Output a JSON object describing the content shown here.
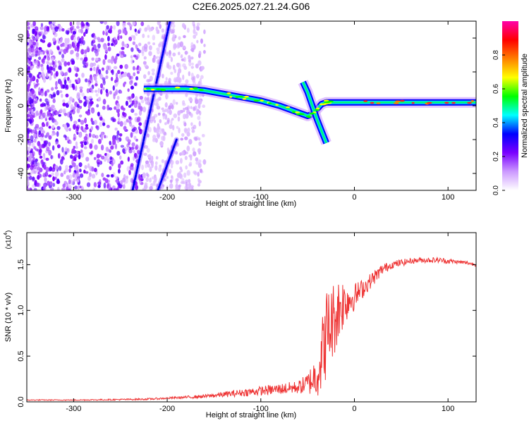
{
  "title": "C2E6.2025.027.21.24.G06",
  "chart_data": [
    {
      "type": "heatmap",
      "xlabel": "Height of straight line (km)",
      "ylabel": "Frequency (Hz)",
      "xlim": [
        -350,
        130
      ],
      "ylim": [
        -50,
        50
      ],
      "x_ticks": [
        -300,
        -200,
        -100,
        0,
        100
      ],
      "y_ticks": [
        -40,
        -20,
        0,
        20,
        40
      ],
      "colorbar": {
        "label": "Normalized spectral amplitude",
        "range": [
          0,
          1
        ],
        "ticks": [
          "0.0",
          "0.2",
          "0.4",
          "0.6",
          "0.8"
        ],
        "tick_values": [
          0,
          0.2,
          0.4,
          0.6,
          0.8
        ],
        "colors": [
          "#ffffff",
          "#cc99ff",
          "#7a00ff",
          "#0000ff",
          "#00ffff",
          "#00ff00",
          "#ffff00",
          "#ff8000",
          "#ff0000",
          "#ff00aa"
        ]
      },
      "features": {
        "noise_region_x": [
          -350,
          -160
        ],
        "diagonal_tracks": [
          {
            "x": [
              -237,
              -197
            ],
            "y": [
              -50,
              50
            ]
          },
          {
            "x": [
              -210,
              -190
            ],
            "y": [
              -50,
              -20
            ]
          }
        ],
        "main_trace": {
          "x": [
            -225,
            -200,
            -180,
            -160,
            -140,
            -120,
            -100,
            -80,
            -60,
            -50,
            -45,
            -40,
            -35,
            -30,
            -25,
            -15,
            0,
            20,
            50,
            80,
            100,
            130
          ],
          "y": [
            10,
            10,
            10,
            9,
            7,
            5,
            3,
            0,
            -4,
            -6,
            -5,
            -2,
            1,
            2,
            2,
            2,
            2,
            2,
            2,
            2,
            2,
            2
          ]
        },
        "branch_trace": {
          "x": [
            -55,
            -50,
            -45,
            -40,
            -35,
            -30
          ],
          "y": [
            14,
            8,
            0,
            -8,
            -15,
            -22
          ]
        }
      }
    },
    {
      "type": "line",
      "xlabel": "Height of straight line (km)",
      "ylabel": "SNR (10 * v/v)",
      "y_scale_note": "(x10",
      "y_scale_exp": "4",
      "xlim": [
        -350,
        130
      ],
      "ylim": [
        0,
        1.85
      ],
      "x_ticks": [
        -300,
        -200,
        -100,
        0,
        100
      ],
      "y_ticks": [
        "0.0",
        "0.5",
        "1.0",
        "1.5"
      ],
      "y_tick_values": [
        0,
        0.5,
        1.0,
        1.5
      ],
      "color": "#ee3333",
      "series": [
        {
          "x": [
            -350,
            -300,
            -250,
            -220,
            -200,
            -180,
            -160,
            -140,
            -120,
            -100,
            -80,
            -60,
            -50,
            -40,
            -35,
            -30,
            -25,
            -20,
            -15,
            -10,
            0,
            10,
            20,
            30,
            40,
            50,
            60,
            70,
            80,
            90,
            100,
            110,
            120,
            130
          ],
          "y": [
            0.02,
            0.02,
            0.025,
            0.03,
            0.04,
            0.05,
            0.06,
            0.08,
            0.1,
            0.12,
            0.14,
            0.16,
            0.2,
            0.3,
            0.5,
            0.75,
            0.85,
            0.95,
            1.05,
            1.1,
            1.15,
            1.25,
            1.35,
            1.45,
            1.5,
            1.52,
            1.54,
            1.55,
            1.55,
            1.55,
            1.54,
            1.53,
            1.52,
            1.5
          ],
          "noise": [
            0.005,
            0.005,
            0.008,
            0.01,
            0.01,
            0.015,
            0.02,
            0.03,
            0.04,
            0.05,
            0.06,
            0.07,
            0.12,
            0.25,
            0.4,
            0.5,
            0.45,
            0.4,
            0.35,
            0.25,
            0.15,
            0.1,
            0.08,
            0.06,
            0.04,
            0.04,
            0.03,
            0.03,
            0.03,
            0.03,
            0.03,
            0.02,
            0.02,
            0.02
          ]
        }
      ]
    }
  ]
}
